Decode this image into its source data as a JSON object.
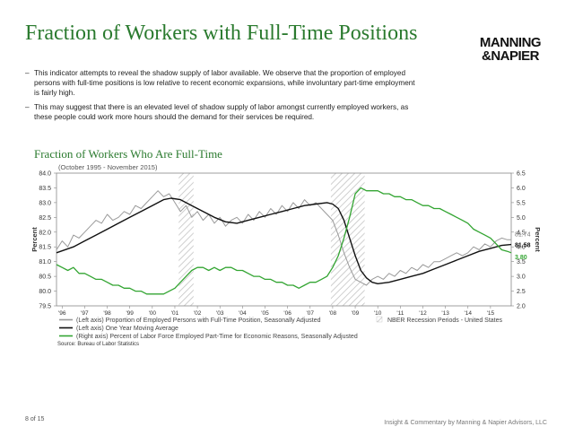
{
  "page": {
    "title": "Fraction of Workers with Full-Time Positions",
    "logo_line1": "MANNING",
    "logo_line2": "&NAPIER",
    "bullets": [
      "This indicator attempts to reveal the shadow supply of labor available. We observe that the proportion of employed persons with full-time positions is low relative to recent economic expansions, while involuntary part-time employment is fairly high.",
      "This may suggest that there is an elevated level of shadow supply of labor amongst currently employed workers, as these people could work more hours should the demand for their services be required."
    ],
    "page_number": "8 of 15",
    "footer_text": "Insight & Commentary by Manning & Napier Advisors, LLC"
  },
  "colors": {
    "title_green": "#2a7a2e",
    "gray_series": "#9a9a9a",
    "black_series": "#111111",
    "green_series": "#33a532",
    "recession_hatch": "#bbbbbb"
  },
  "chart_data": {
    "type": "line",
    "title": "Fraction of Workers Who Are Full-Time",
    "subtitle": "(October 1995 - November 2015)",
    "ylabel_left": "Percent",
    "ylabel_right": "Percent",
    "ylim_left": [
      79.5,
      84.0
    ],
    "ylim_right": [
      2.0,
      6.5
    ],
    "yticks_left": [
      "84.0",
      "83.5",
      "83.0",
      "82.5",
      "82.0",
      "81.5",
      "81.0",
      "80.5",
      "80.0",
      "79.5"
    ],
    "yticks_right": [
      "6.5",
      "6.0",
      "5.5",
      "5.0",
      "4.5",
      "4.0",
      "3.5",
      "3.0",
      "2.5",
      "2.0"
    ],
    "xlim": [
      1995.75,
      2015.92
    ],
    "xticks": [
      "'96",
      "'97",
      "'98",
      "'99",
      "'00",
      "'01",
      "'02",
      "'03",
      "'04",
      "'05",
      "'06",
      "'07",
      "'08",
      "'09",
      "'10",
      "'11",
      "'12",
      "'13",
      "'14",
      "'15"
    ],
    "recessions": [
      [
        2001.17,
        2001.83
      ],
      [
        2007.92,
        2009.42
      ]
    ],
    "series": [
      {
        "name": "(Left axis) Proportion of Employed Persons with Full-Time Position, Seasonally Adjusted",
        "axis": "left",
        "x": [
          1995.75,
          1996.0,
          1996.25,
          1996.5,
          1996.75,
          1997.0,
          1997.25,
          1997.5,
          1997.75,
          1998.0,
          1998.25,
          1998.5,
          1998.75,
          1999.0,
          1999.25,
          1999.5,
          1999.75,
          2000.0,
          2000.25,
          2000.5,
          2000.75,
          2001.0,
          2001.25,
          2001.5,
          2001.75,
          2002.0,
          2002.25,
          2002.5,
          2002.75,
          2003.0,
          2003.25,
          2003.5,
          2003.75,
          2004.0,
          2004.25,
          2004.5,
          2004.75,
          2005.0,
          2005.25,
          2005.5,
          2005.75,
          2006.0,
          2006.25,
          2006.5,
          2006.75,
          2007.0,
          2007.25,
          2007.5,
          2007.75,
          2008.0,
          2008.25,
          2008.5,
          2008.75,
          2009.0,
          2009.25,
          2009.5,
          2009.75,
          2010.0,
          2010.25,
          2010.5,
          2010.75,
          2011.0,
          2011.25,
          2011.5,
          2011.75,
          2012.0,
          2012.25,
          2012.5,
          2012.75,
          2013.0,
          2013.25,
          2013.5,
          2013.75,
          2014.0,
          2014.25,
          2014.5,
          2014.75,
          2015.0,
          2015.25,
          2015.5,
          2015.75,
          2015.92
        ],
        "values": [
          81.4,
          81.7,
          81.5,
          81.9,
          81.8,
          82.0,
          82.2,
          82.4,
          82.3,
          82.6,
          82.4,
          82.5,
          82.7,
          82.6,
          82.9,
          82.8,
          83.0,
          83.2,
          83.4,
          83.2,
          83.3,
          83.0,
          82.7,
          82.9,
          82.5,
          82.7,
          82.4,
          82.6,
          82.3,
          82.5,
          82.2,
          82.4,
          82.5,
          82.3,
          82.6,
          82.4,
          82.7,
          82.5,
          82.8,
          82.6,
          82.9,
          82.7,
          83.0,
          82.8,
          83.1,
          82.9,
          83.0,
          82.8,
          82.6,
          82.4,
          81.9,
          81.3,
          80.8,
          80.4,
          80.3,
          80.2,
          80.4,
          80.5,
          80.4,
          80.6,
          80.5,
          80.7,
          80.6,
          80.8,
          80.7,
          80.9,
          80.8,
          81.0,
          81.0,
          81.1,
          81.2,
          81.3,
          81.2,
          81.3,
          81.5,
          81.4,
          81.6,
          81.5,
          81.7,
          81.8,
          81.74,
          81.74
        ]
      },
      {
        "name": "(Left axis) One Year Moving Average",
        "axis": "left",
        "x": [
          1995.75,
          1996.5,
          1997.0,
          1997.5,
          1998.0,
          1998.5,
          1999.0,
          1999.5,
          2000.0,
          2000.5,
          2000.83,
          2001.25,
          2001.75,
          2002.25,
          2002.75,
          2003.25,
          2003.75,
          2004.25,
          2004.75,
          2005.25,
          2005.75,
          2006.25,
          2006.75,
          2007.25,
          2007.75,
          2008.0,
          2008.25,
          2008.5,
          2008.75,
          2009.0,
          2009.25,
          2009.5,
          2009.75,
          2010.0,
          2010.5,
          2011.0,
          2011.5,
          2012.0,
          2012.5,
          2013.0,
          2013.5,
          2014.0,
          2014.5,
          2015.0,
          2015.5,
          2015.92
        ],
        "values": [
          81.3,
          81.5,
          81.7,
          81.9,
          82.1,
          82.3,
          82.5,
          82.7,
          82.9,
          83.1,
          83.15,
          83.1,
          82.9,
          82.7,
          82.5,
          82.35,
          82.3,
          82.4,
          82.5,
          82.6,
          82.7,
          82.8,
          82.9,
          82.95,
          83.0,
          82.95,
          82.8,
          82.4,
          81.8,
          81.2,
          80.7,
          80.45,
          80.3,
          80.25,
          80.3,
          80.4,
          80.5,
          80.6,
          80.75,
          80.9,
          81.05,
          81.2,
          81.35,
          81.45,
          81.55,
          81.58
        ]
      },
      {
        "name": "(Right axis) Percent of Labor Force Employed Part-Time for Economic Reasons, Seasonally Adjusted",
        "axis": "right",
        "x": [
          1995.75,
          1996.0,
          1996.25,
          1996.5,
          1996.75,
          1997.0,
          1997.25,
          1997.5,
          1997.75,
          1998.0,
          1998.25,
          1998.5,
          1998.75,
          1999.0,
          1999.25,
          1999.5,
          1999.75,
          2000.0,
          2000.25,
          2000.5,
          2000.75,
          2001.0,
          2001.25,
          2001.5,
          2001.75,
          2002.0,
          2002.25,
          2002.5,
          2002.75,
          2003.0,
          2003.25,
          2003.5,
          2003.75,
          2004.0,
          2004.25,
          2004.5,
          2004.75,
          2005.0,
          2005.25,
          2005.5,
          2005.75,
          2006.0,
          2006.25,
          2006.5,
          2006.75,
          2007.0,
          2007.25,
          2007.5,
          2007.75,
          2008.0,
          2008.25,
          2008.5,
          2008.75,
          2009.0,
          2009.25,
          2009.5,
          2009.75,
          2010.0,
          2010.25,
          2010.5,
          2010.75,
          2011.0,
          2011.25,
          2011.5,
          2011.75,
          2012.0,
          2012.25,
          2012.5,
          2012.75,
          2013.0,
          2013.25,
          2013.5,
          2013.75,
          2014.0,
          2014.25,
          2014.5,
          2014.75,
          2015.0,
          2015.25,
          2015.5,
          2015.75,
          2015.92
        ],
        "values": [
          3.4,
          3.3,
          3.2,
          3.3,
          3.1,
          3.1,
          3.0,
          2.9,
          2.9,
          2.8,
          2.7,
          2.7,
          2.6,
          2.6,
          2.5,
          2.5,
          2.4,
          2.4,
          2.4,
          2.4,
          2.5,
          2.6,
          2.8,
          3.0,
          3.2,
          3.3,
          3.3,
          3.2,
          3.3,
          3.2,
          3.3,
          3.3,
          3.2,
          3.2,
          3.1,
          3.0,
          3.0,
          2.9,
          2.9,
          2.8,
          2.8,
          2.7,
          2.7,
          2.6,
          2.7,
          2.8,
          2.8,
          2.9,
          3.0,
          3.3,
          3.7,
          4.3,
          5.0,
          5.8,
          6.0,
          5.9,
          5.9,
          5.9,
          5.8,
          5.8,
          5.7,
          5.7,
          5.6,
          5.6,
          5.5,
          5.4,
          5.4,
          5.3,
          5.3,
          5.2,
          5.1,
          5.0,
          4.9,
          4.8,
          4.6,
          4.5,
          4.4,
          4.3,
          4.1,
          3.9,
          3.85,
          3.8
        ]
      }
    ],
    "end_labels": [
      {
        "text": "81.74",
        "series_index": 0
      },
      {
        "text": "81.58",
        "series_index": 1
      },
      {
        "text": "3.80",
        "series_index": 2
      }
    ],
    "legend": [
      {
        "text": "(Left axis) Proportion of Employed Persons with Full-Time Position, Seasonally Adjusted",
        "kind": "line",
        "color": "#9a9a9a"
      },
      {
        "text": "(Left axis) One Year Moving Average",
        "kind": "line",
        "color": "#111111"
      },
      {
        "text": "(Right axis) Percent of Labor Force Employed Part-Time for Economic Reasons, Seasonally Adjusted",
        "kind": "line",
        "color": "#33a532"
      },
      {
        "text": "NBER Recession Periods - United States",
        "kind": "hatch",
        "color": "#bbbbbb"
      }
    ],
    "source": "Source: Bureau of Labor Statistics",
    "grid": false,
    "legend_position": "bottom"
  }
}
